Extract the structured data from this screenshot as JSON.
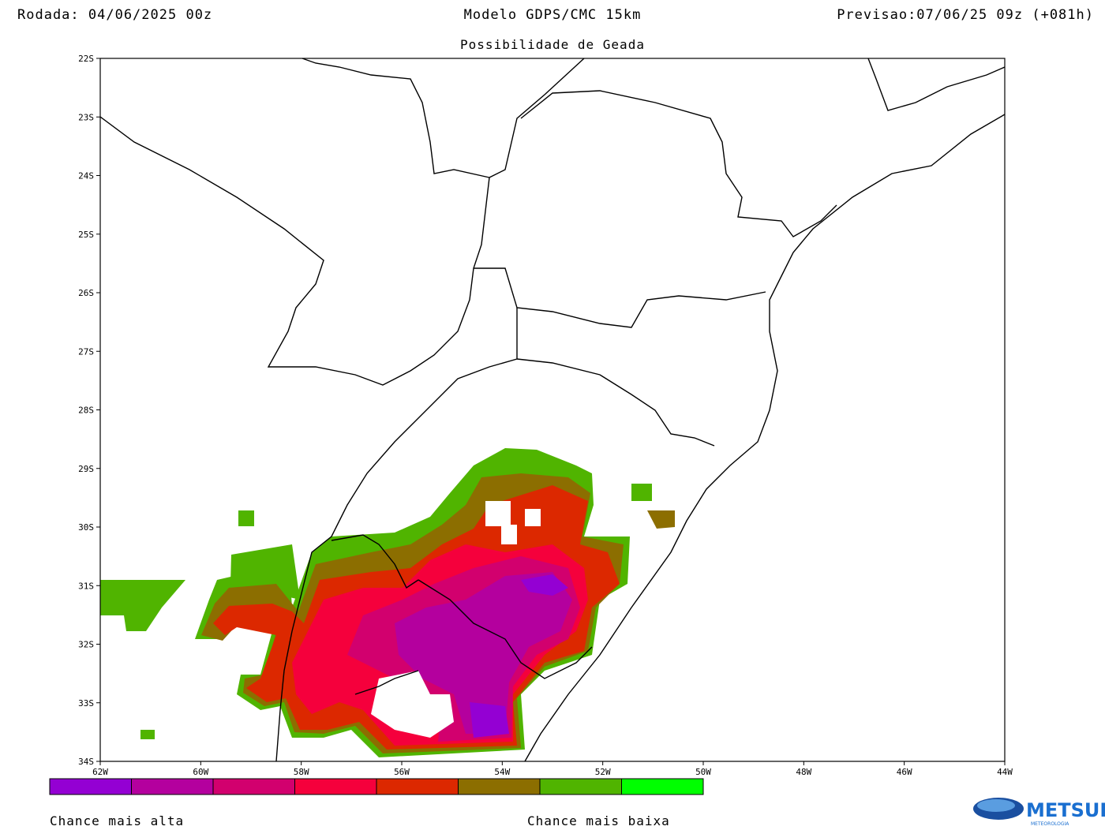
{
  "header": {
    "run": "Rodada: 04/06/2025 00z",
    "model": "Modelo GDPS/CMC 15km",
    "forecast": "Previsao:07/06/25 09z (+081h)",
    "subtitle": "Possibilidade de Geada"
  },
  "map": {
    "lat_labels": [
      "22S",
      "23S",
      "24S",
      "25S",
      "26S",
      "27S",
      "28S",
      "29S",
      "30S",
      "31S",
      "32S",
      "33S",
      "34S"
    ],
    "lon_labels": [
      "62W",
      "60W",
      "58W",
      "56W",
      "54W",
      "52W",
      "50W",
      "48W",
      "46W",
      "44W"
    ]
  },
  "legend": {
    "colors": [
      "#9400d3",
      "#b4009e",
      "#d2006e",
      "#f5003c",
      "#dc2800",
      "#8c6e00",
      "#50b400",
      "#00ff00"
    ],
    "high_label": "Chance mais alta",
    "low_label": "Chance mais baixa"
  },
  "logo": {
    "name": "METSUL",
    "tagline": "METEOROLOGIA"
  }
}
